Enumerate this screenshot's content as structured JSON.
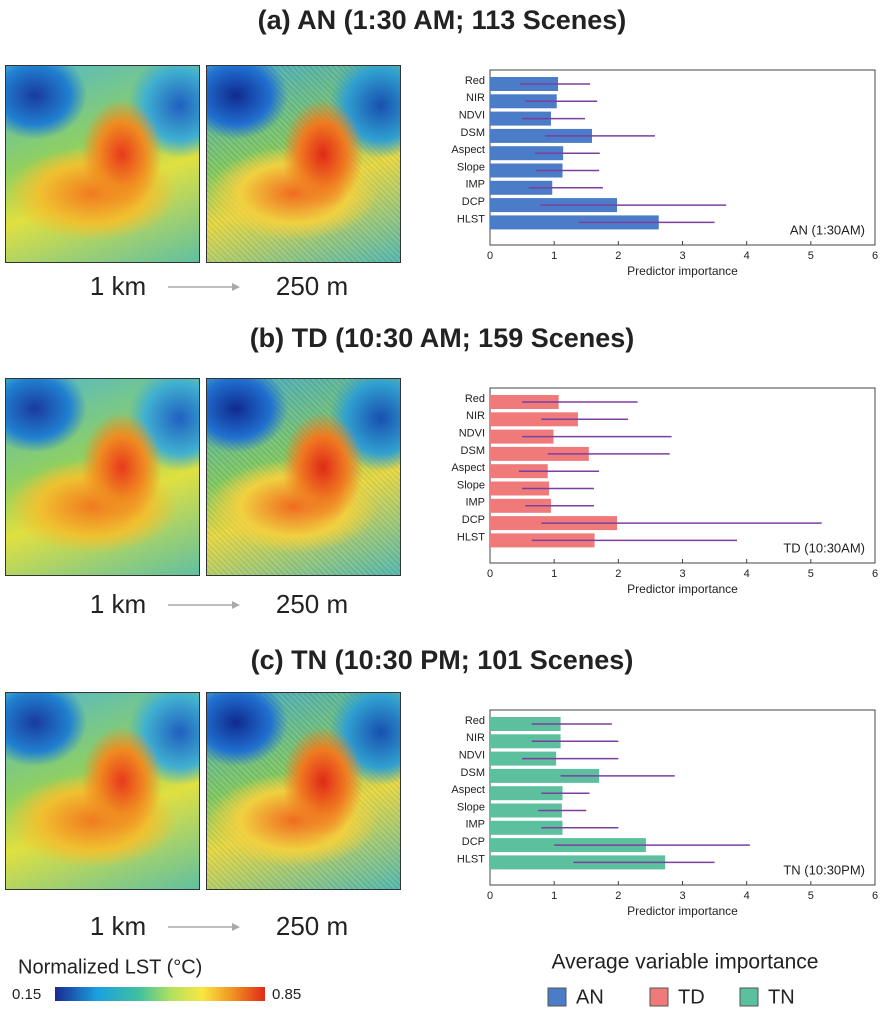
{
  "chart_data": [
    {
      "type": "bar",
      "orientation": "horizontal",
      "name": "AN",
      "title": "(a) AN (1:30 AM; 113 Scenes)",
      "resolution_labels": [
        "1 km",
        "250 m"
      ],
      "annotation": "AN (1:30AM)",
      "xlabel": "Predictor importance",
      "color": "#4a7cc7",
      "categories": [
        "Red",
        "NIR",
        "NDVI",
        "DSM",
        "Aspect",
        "Slope",
        "IMP",
        "DCP",
        "HLST"
      ],
      "values": [
        1.06,
        1.04,
        0.95,
        1.59,
        1.14,
        1.13,
        0.97,
        1.98,
        2.63
      ],
      "whisker_low": [
        0.47,
        0.55,
        0.5,
        0.86,
        0.7,
        0.72,
        0.6,
        0.78,
        1.38
      ],
      "whisker_high": [
        1.56,
        1.67,
        1.48,
        2.57,
        1.71,
        1.7,
        1.76,
        3.68,
        3.5
      ],
      "whisker_color": "#7b3fa0",
      "xlim": [
        0,
        6
      ],
      "xticks": [
        0,
        1,
        2,
        3,
        4,
        5,
        6
      ]
    },
    {
      "type": "bar",
      "orientation": "horizontal",
      "name": "TD",
      "title": "(b) TD (10:30 AM; 159 Scenes)",
      "resolution_labels": [
        "1 km",
        "250 m"
      ],
      "annotation": "TD (10:30AM)",
      "xlabel": "Predictor importance",
      "color": "#f07a7a",
      "categories": [
        "Red",
        "NIR",
        "NDVI",
        "DSM",
        "Aspect",
        "Slope",
        "IMP",
        "DCP",
        "HLST"
      ],
      "values": [
        1.07,
        1.37,
        0.99,
        1.54,
        0.9,
        0.92,
        0.95,
        1.98,
        1.63
      ],
      "whisker_low": [
        0.5,
        0.8,
        0.5,
        0.9,
        0.45,
        0.5,
        0.55,
        0.8,
        0.65
      ],
      "whisker_high": [
        2.3,
        2.15,
        2.83,
        2.8,
        1.7,
        1.62,
        1.62,
        5.17,
        3.85
      ],
      "whisker_color": "#7b3fa0",
      "xlim": [
        0,
        6
      ],
      "xticks": [
        0,
        1,
        2,
        3,
        4,
        5,
        6
      ]
    },
    {
      "type": "bar",
      "orientation": "horizontal",
      "name": "TN",
      "title": "(c) TN (10:30 PM; 101 Scenes)",
      "resolution_labels": [
        "1 km",
        "250 m"
      ],
      "annotation": "TN (10:30PM)",
      "xlabel": "Predictor importance",
      "color": "#5cbf9e",
      "categories": [
        "Red",
        "NIR",
        "NDVI",
        "DSM",
        "Aspect",
        "Slope",
        "IMP",
        "DCP",
        "HLST"
      ],
      "values": [
        1.1,
        1.1,
        1.03,
        1.7,
        1.13,
        1.12,
        1.13,
        2.43,
        2.73
      ],
      "whisker_low": [
        0.65,
        0.65,
        0.5,
        1.1,
        0.8,
        0.75,
        0.8,
        1.0,
        1.3
      ],
      "whisker_high": [
        1.9,
        2.0,
        2.0,
        2.88,
        1.55,
        1.5,
        2.0,
        4.05,
        3.5
      ],
      "whisker_color": "#7b3fa0",
      "xlim": [
        0,
        6
      ],
      "xticks": [
        0,
        1,
        2,
        3,
        4,
        5,
        6
      ]
    }
  ],
  "legend_title": "Average variable importance",
  "colorbar": {
    "label": "Normalized LST (°C)",
    "min": 0.15,
    "max": 0.85
  }
}
